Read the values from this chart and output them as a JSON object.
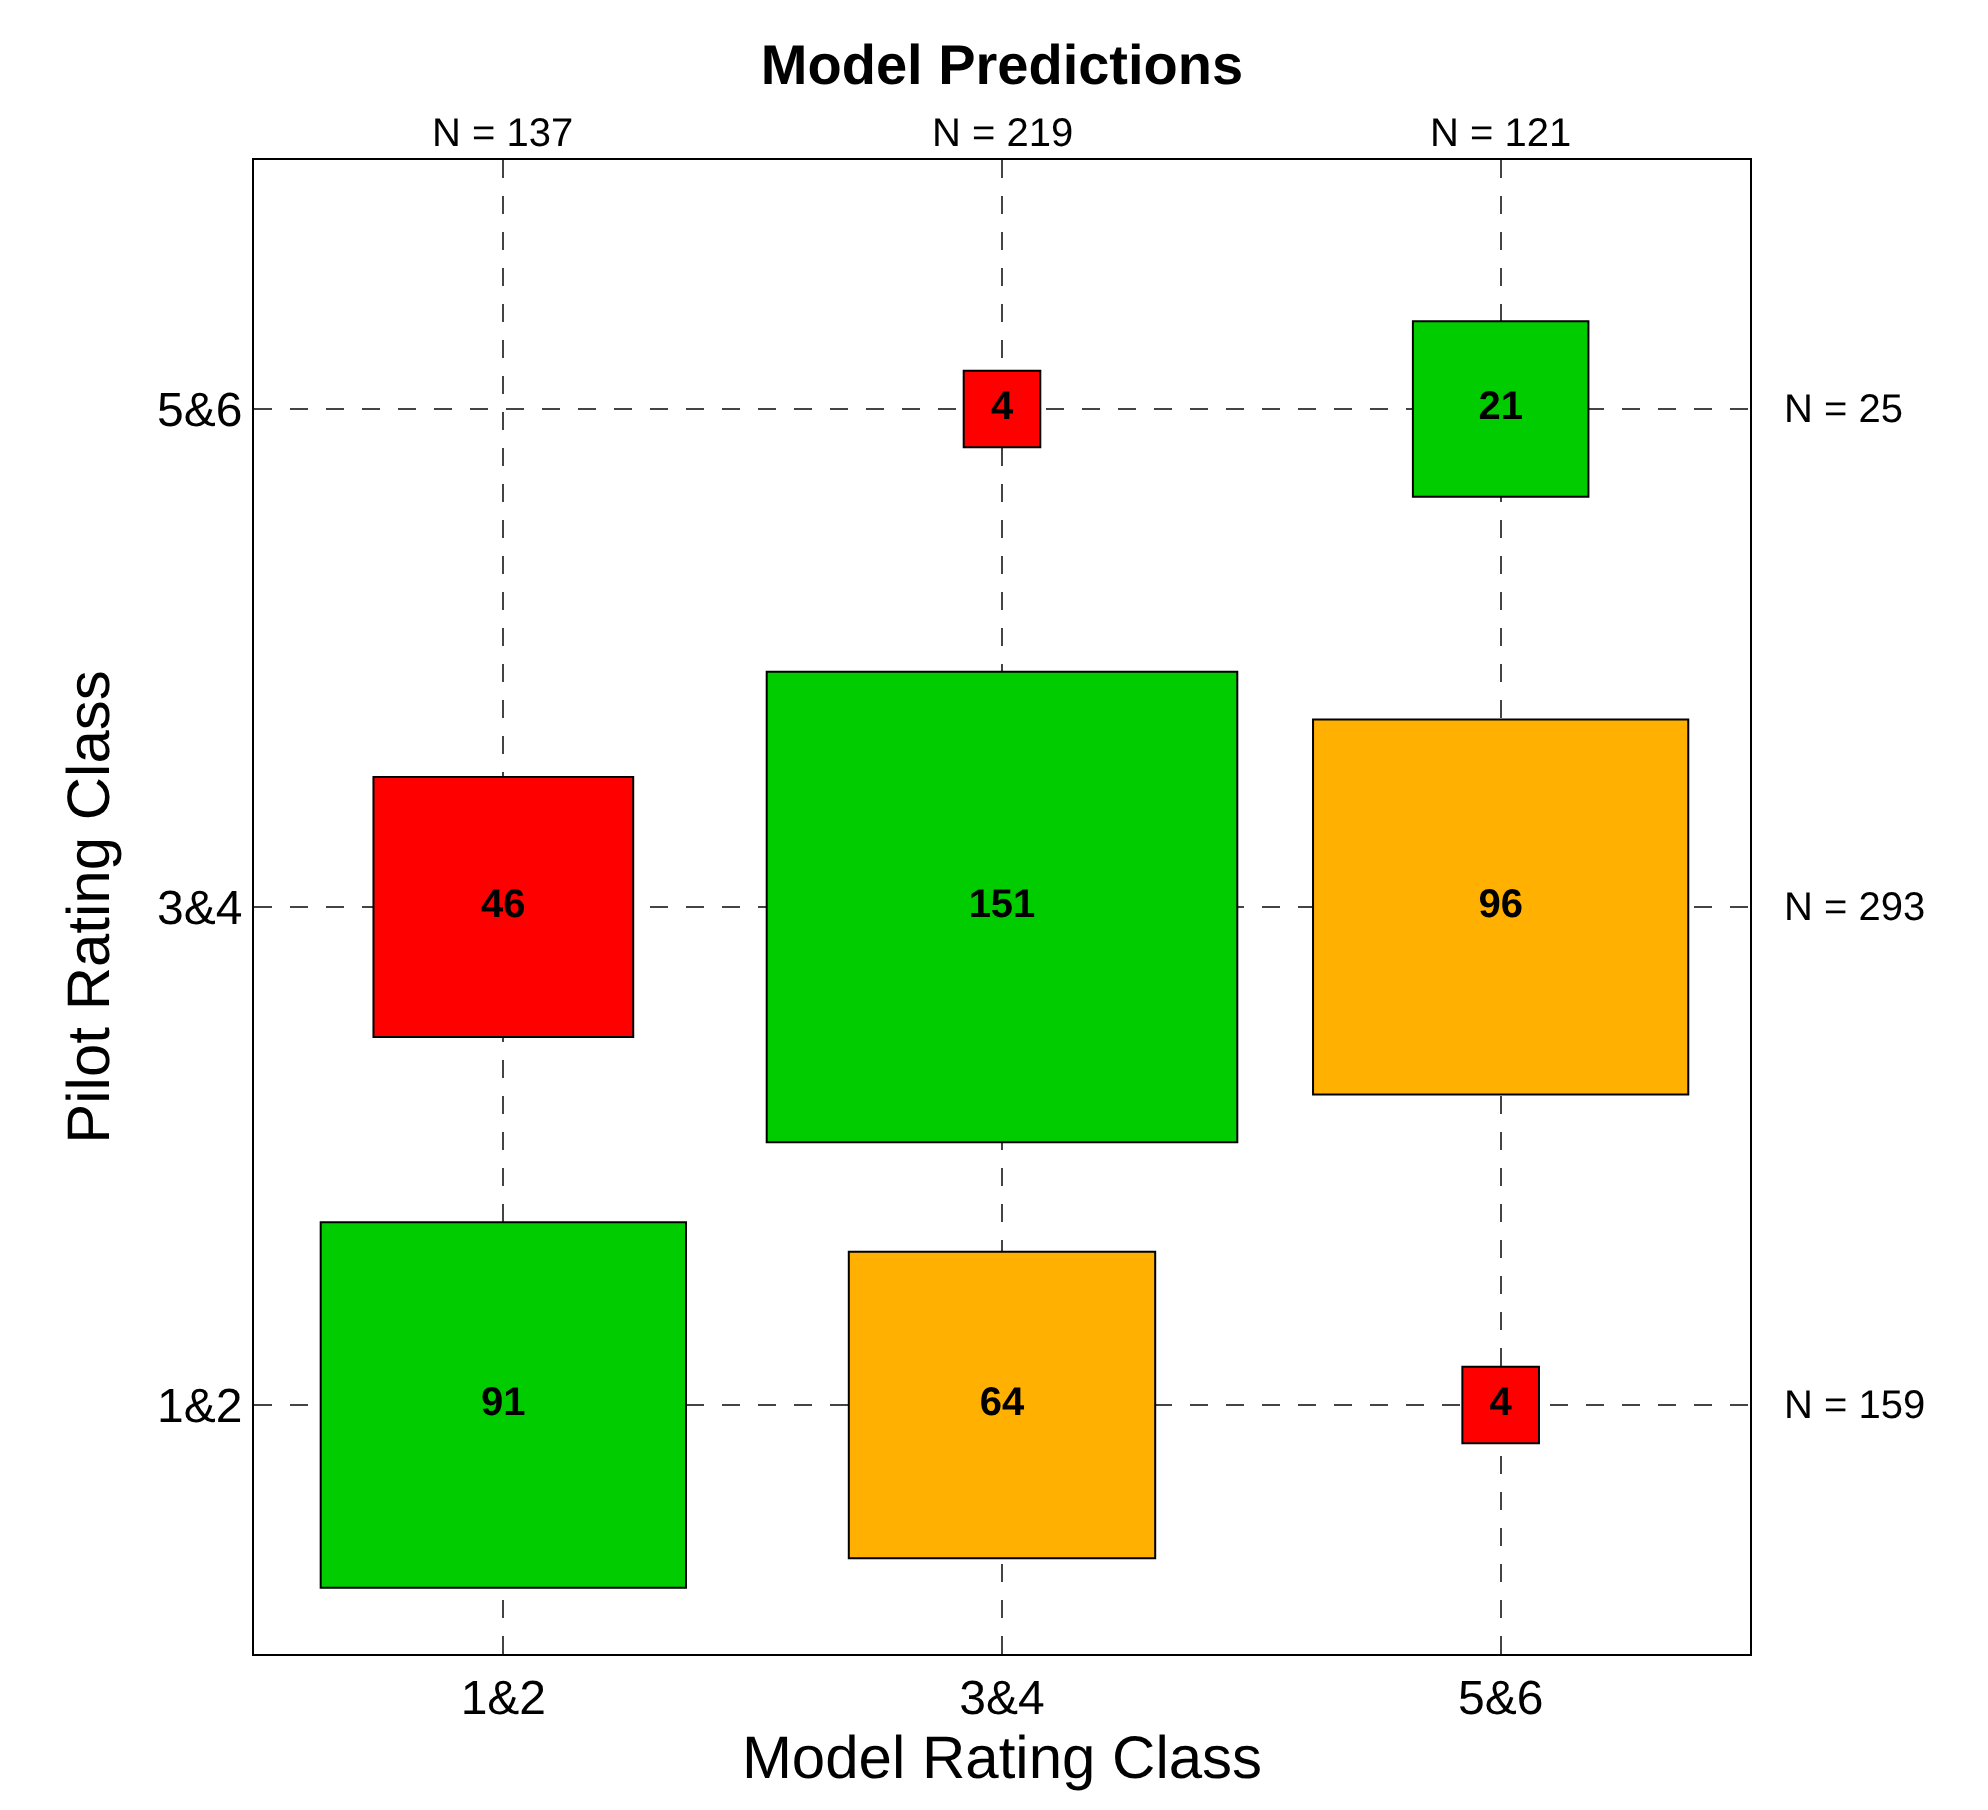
{
  "chart_data": {
    "type": "heatmap",
    "title": "Model Predictions",
    "xlabel": "Model Rating Class",
    "ylabel": "Pilot Rating Class",
    "categories": [
      "1&2",
      "3&4",
      "5&6"
    ],
    "y_categories": [
      "5&6",
      "3&4",
      "1&2"
    ],
    "y2_categories": [
      "N = 25",
      "N = 293",
      "N = 159"
    ],
    "annotations": [
      "N = 137",
      "N = 219",
      "N = 121"
    ],
    "cells": [
      [
        null,
        4,
        21
      ],
      [
        46,
        151,
        96
      ],
      [
        91,
        64,
        4
      ]
    ],
    "colors": [
      [
        null,
        "#ff0000",
        "#00cc00"
      ],
      [
        "#ff0000",
        "#00cc00",
        "#ffb000"
      ],
      [
        "#00cc00",
        "#ffb000",
        "#ff0000"
      ]
    ],
    "data_labels": true,
    "grid": true
  }
}
